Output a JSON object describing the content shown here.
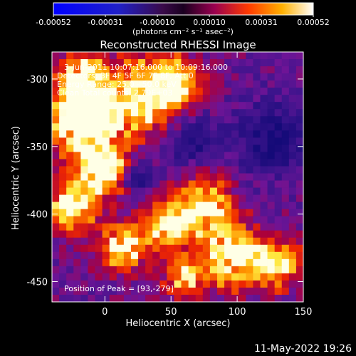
{
  "footer_date": "11-May-2022 19:26",
  "chart_data": {
    "type": "heatmap",
    "title": "Reconstructed RHESSI Image",
    "xlabel": "Heliocentric X (arcsec)",
    "ylabel": "Heliocentric Y (arcsec)",
    "xlim": [
      -40,
      150
    ],
    "ylim": [
      -465,
      -280
    ],
    "xticks": [
      0,
      50,
      100,
      150
    ],
    "yticks": [
      -300,
      -350,
      -400,
      -450
    ],
    "colorbar": {
      "ticks": [
        "-0.00052",
        "-0.00031",
        "-0.00010",
        "0.00010",
        "0.00031",
        "0.00052"
      ],
      "unit_label": "(photons cm⁻² s⁻¹ asec⁻²)",
      "range": [
        -0.00052,
        0.00052
      ]
    },
    "annotations": [
      "3-Jun-2011 10:07:16.000 to 10:09:16.000",
      "Detectors: 3F 4F 5F 6F 7F 8F, Att 0",
      "Energy Range: 25.0 - 50.0 keV",
      "Clean     Total counts: 2.79E+03"
    ],
    "peak_label": "Position of Peak = [93,-279]",
    "grid": false
  }
}
